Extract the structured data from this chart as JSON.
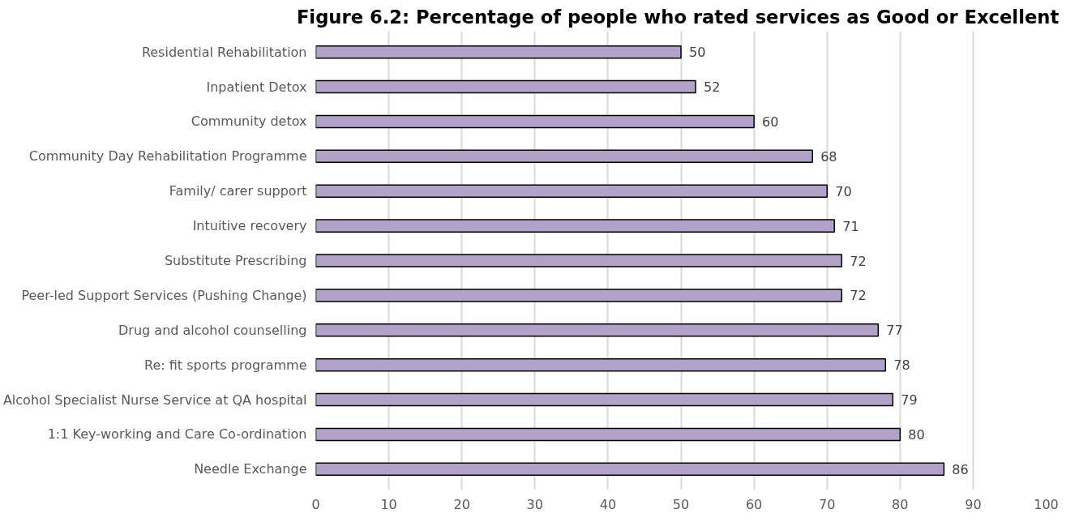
{
  "chart_data": {
    "type": "bar",
    "orientation": "horizontal",
    "title": "Figure 6.2: Percentage of people who rated services  as Good or Excellent",
    "categories": [
      "Residential Rehabilitation",
      "Inpatient Detox",
      "Community detox",
      "Community Day Rehabilitation Programme",
      "Family/ carer support",
      "Intuitive recovery",
      "Substitute Prescribing",
      "Peer-led Support Services (Pushing Change)",
      "Drug and alcohol counselling",
      "Re: fit sports programme",
      "Alcohol Specialist Nurse Service at QA hospital",
      "1:1 Key-working and Care Co-ordination",
      "Needle Exchange"
    ],
    "values": [
      50,
      52,
      60,
      68,
      70,
      71,
      72,
      72,
      77,
      78,
      79,
      80,
      86
    ],
    "color": "#b3a2c7",
    "xlim": [
      0,
      100
    ],
    "xticks": [
      0,
      10,
      20,
      30,
      40,
      50,
      60,
      70,
      80,
      90,
      100
    ],
    "grid": "x",
    "data_labels": true
  }
}
